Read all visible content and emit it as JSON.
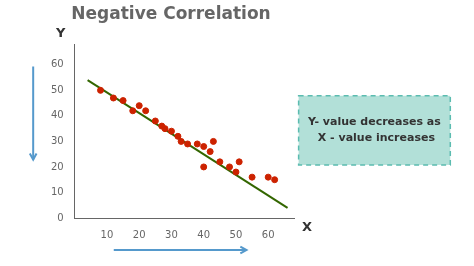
{
  "chart_data": {
    "type": "scatter",
    "title": "Negative Correlation",
    "xlabel": "X",
    "ylabel": "Y",
    "series": [
      {
        "type": "scatter",
        "color": "#cc2200",
        "x": [
          8,
          12,
          15,
          18,
          20,
          22,
          25,
          27,
          28,
          30,
          32,
          33,
          35,
          38,
          40,
          40,
          42,
          43,
          45,
          48,
          50,
          51,
          55,
          60,
          62
        ],
        "values": [
          50,
          47,
          46,
          42,
          44,
          42,
          38,
          36,
          35,
          34,
          32,
          30,
          29,
          29,
          28,
          20,
          26,
          30,
          22,
          20,
          18,
          22,
          16,
          16,
          15
        ]
      },
      {
        "type": "line",
        "color": "#336600",
        "x": [
          4,
          66
        ],
        "values": [
          54,
          4
        ]
      }
    ],
    "xlim": [
      0,
      68
    ],
    "ylim": [
      0,
      68
    ],
    "xticks": [
      10,
      20,
      30,
      40,
      50,
      60
    ],
    "yticks": [
      0,
      10,
      20,
      30,
      40,
      50,
      60
    ],
    "grid": false,
    "annotation": "Y- value decreases as\n X - value increases"
  }
}
